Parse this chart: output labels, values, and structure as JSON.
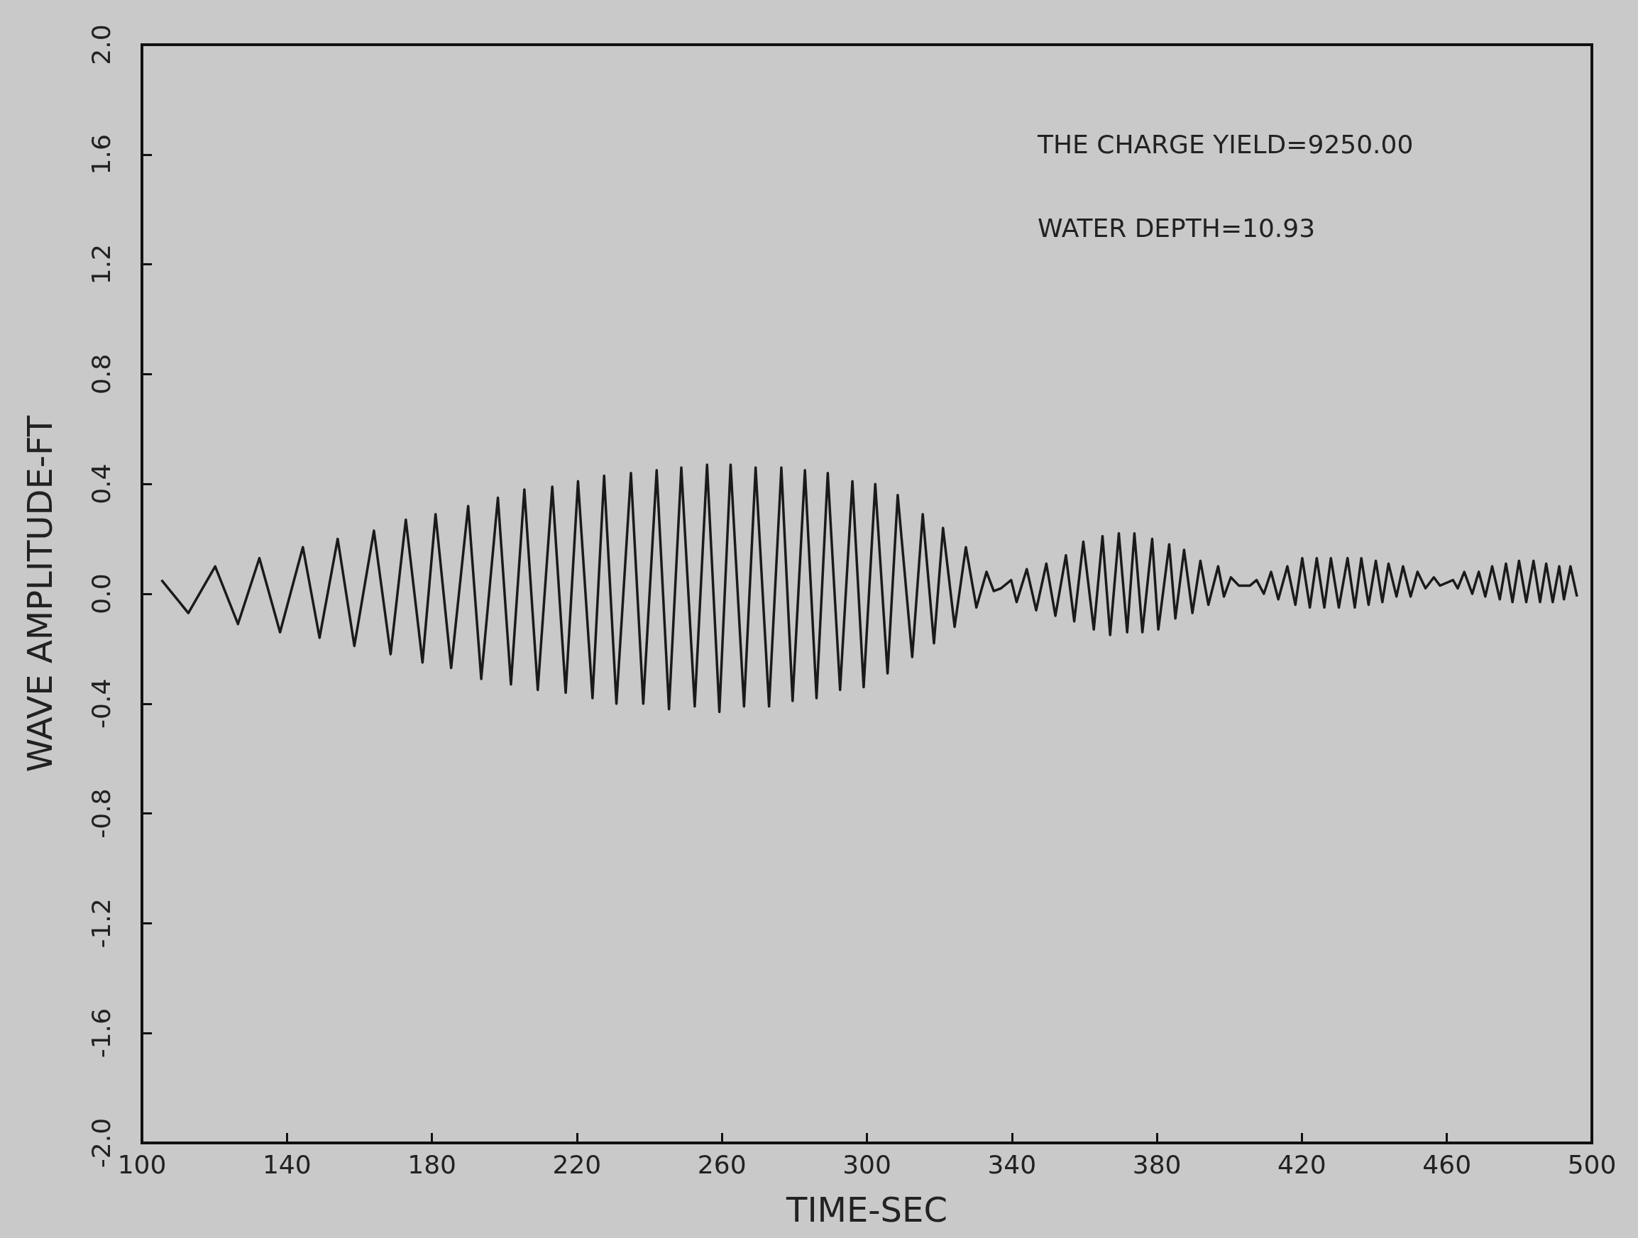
{
  "chart_data": {
    "type": "line",
    "xlabel": "TIME-SEC",
    "ylabel": "WAVE AMPLITUDE-FT",
    "annotations": [
      "THE CHARGE YIELD=9250.00",
      "WATER DEPTH=10.93"
    ],
    "xlim": [
      100,
      500
    ],
    "xticks": [
      100,
      140,
      180,
      220,
      260,
      300,
      340,
      380,
      420,
      460,
      500
    ],
    "ylim": [
      -2.0,
      2.0
    ],
    "yticks": [
      {
        "value": -2.0,
        "label": "-2.0"
      },
      {
        "value": -1.6,
        "label": "-1.6"
      },
      {
        "value": -1.2,
        "label": "-1.2"
      },
      {
        "value": -0.8,
        "label": "-0.8"
      },
      {
        "value": -0.4,
        "label": "-0.4"
      },
      {
        "value": 0,
        "label": "0.0"
      },
      {
        "value": 0.4,
        "label": "0.4"
      },
      {
        "value": 0.8,
        "label": "0.8"
      },
      {
        "value": 1.2,
        "label": "1.2"
      },
      {
        "value": 1.6,
        "label": "1.6"
      },
      {
        "value": 2.0,
        "label": "2.0"
      }
    ],
    "grid": false,
    "marker": "none",
    "line_style": "solid",
    "series": [
      {
        "color": "#1a1a1a",
        "x": [
          105.4,
          112.8,
          120.2,
          126.5,
          132.4,
          138.1,
          144.4,
          149,
          154,
          158.6,
          164,
          168.6,
          172.8,
          177.4,
          181,
          185.3,
          190,
          193.6,
          198.2,
          201.8,
          205.5,
          209.2,
          213.2,
          216.9,
          220.3,
          224.3,
          227.5,
          230.9,
          234.9,
          238.3,
          242,
          245.4,
          248.8,
          252.5,
          255.9,
          259.3,
          262.4,
          266.1,
          269.3,
          273,
          276.4,
          279.5,
          282.9,
          286.1,
          289.2,
          292.6,
          296,
          299.1,
          302.3,
          305.7,
          308.5,
          312.5,
          315.4,
          318.5,
          321,
          324.2,
          327.3,
          330.2,
          333,
          335,
          337,
          339.8,
          341.3,
          344.1,
          346.7,
          349.5,
          352,
          354.9,
          357.2,
          359.7,
          362.6,
          365,
          367.1,
          369.5,
          371.8,
          373.8,
          376,
          378.7,
          380.4,
          383.4,
          385.1,
          387.5,
          389.8,
          392,
          394.2,
          396.9,
          398.5,
          400.4,
          402.6,
          405.7,
          407.5,
          409.5,
          411.5,
          413.5,
          416,
          418.2,
          420.1,
          422.2,
          424.1,
          426.2,
          428,
          430.2,
          432.6,
          434.6,
          436.4,
          438.4,
          440.4,
          442.2,
          443.9,
          446.1,
          447.9,
          450,
          451.9,
          454.1,
          456.4,
          458.1,
          461.7,
          463,
          464.8,
          467,
          468.8,
          470.6,
          472.5,
          474.6,
          476.3,
          478.1,
          479.9,
          481.9,
          483.9,
          485.7,
          487.4,
          489.2,
          491,
          492.3,
          494.1,
          495.9
        ],
        "values": [
          0.05,
          -0.07,
          0.1,
          -0.11,
          0.13,
          -0.14,
          0.17,
          -0.16,
          0.2,
          -0.19,
          0.23,
          -0.22,
          0.27,
          -0.25,
          0.29,
          -0.27,
          0.32,
          -0.31,
          0.35,
          -0.33,
          0.38,
          -0.35,
          0.39,
          -0.36,
          0.41,
          -0.38,
          0.43,
          -0.4,
          0.44,
          -0.4,
          0.45,
          -0.42,
          0.46,
          -0.41,
          0.47,
          -0.43,
          0.47,
          -0.41,
          0.46,
          -0.41,
          0.46,
          -0.39,
          0.45,
          -0.38,
          0.44,
          -0.35,
          0.41,
          -0.34,
          0.4,
          -0.29,
          0.36,
          -0.23,
          0.29,
          -0.18,
          0.24,
          -0.12,
          0.17,
          -0.05,
          0.08,
          0.01,
          0.02,
          0.05,
          -0.03,
          0.09,
          -0.06,
          0.11,
          -0.08,
          0.14,
          -0.1,
          0.19,
          -0.13,
          0.21,
          -0.15,
          0.22,
          -0.14,
          0.22,
          -0.14,
          0.2,
          -0.13,
          0.18,
          -0.09,
          0.16,
          -0.07,
          0.12,
          -0.04,
          0.1,
          -0.01,
          0.06,
          0.03,
          0.03,
          0.05,
          0.0,
          0.08,
          -0.02,
          0.1,
          -0.04,
          0.13,
          -0.05,
          0.13,
          -0.05,
          0.13,
          -0.05,
          0.13,
          -0.05,
          0.13,
          -0.04,
          0.12,
          -0.03,
          0.11,
          -0.01,
          0.1,
          -0.01,
          0.08,
          0.02,
          0.06,
          0.03,
          0.05,
          0.02,
          0.08,
          0.0,
          0.08,
          -0.01,
          0.1,
          -0.02,
          0.11,
          -0.03,
          0.12,
          -0.03,
          0.12,
          -0.03,
          0.11,
          -0.03,
          0.1,
          -0.02,
          0.1,
          -0.01
        ]
      }
    ]
  }
}
